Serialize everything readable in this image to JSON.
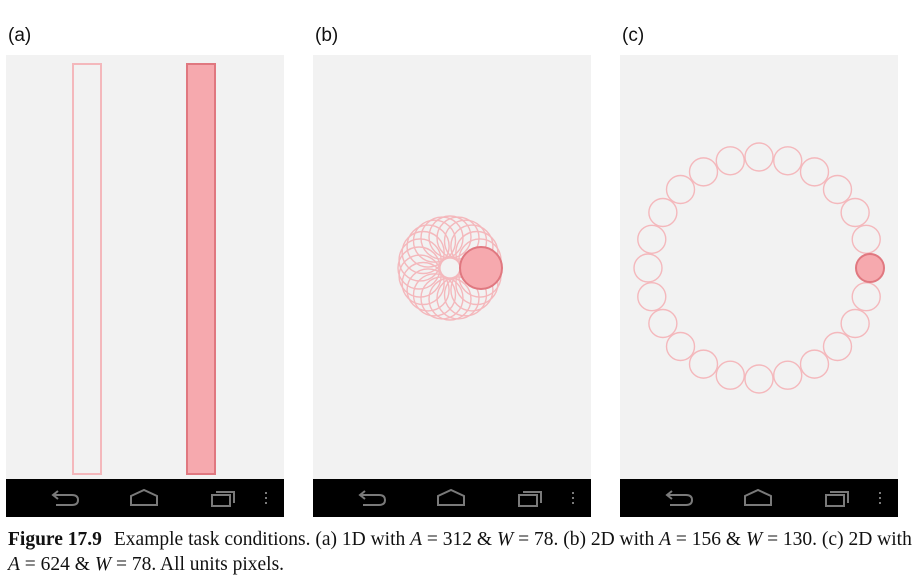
{
  "colors": {
    "screen_bg": "#f2f2f2",
    "target_outline": "#f4b8bc",
    "target_fill": "#f6a9ae",
    "target_stroke": "#e07880",
    "navbar": "#000000",
    "nav_icon": "#7a7a7a"
  },
  "panels": [
    {
      "label": "(a)",
      "condition": "1D",
      "A": 312,
      "W": 78,
      "targets": "two vertical bars; outlined bar and highlighted (filled) bar"
    },
    {
      "label": "(b)",
      "condition": "2D",
      "A": 156,
      "W": 130,
      "circle_count": 24,
      "highlighted_index": 0
    },
    {
      "label": "(c)",
      "condition": "2D",
      "A": 624,
      "W": 78,
      "circle_count": 24,
      "highlighted_index": 0
    }
  ],
  "nav_icons": [
    "back-icon",
    "home-icon",
    "recent-apps-icon",
    "menu-dots-icon"
  ],
  "caption": {
    "figure": "Figure 17.9",
    "t1": "Example task conditions. (a) 1D with ",
    "a1": "A",
    "eq1": " = 312 & ",
    "w1": "W",
    "eq2": " = 78. (b) 2D with ",
    "a2": "A",
    "eq3": " = 156 & ",
    "w2": "W",
    "eq4": " = 130. (c) 2D with ",
    "a3": "A",
    "eq5": " = 624 & ",
    "w3": "W",
    "eq6": " = 78. All units pixels."
  }
}
